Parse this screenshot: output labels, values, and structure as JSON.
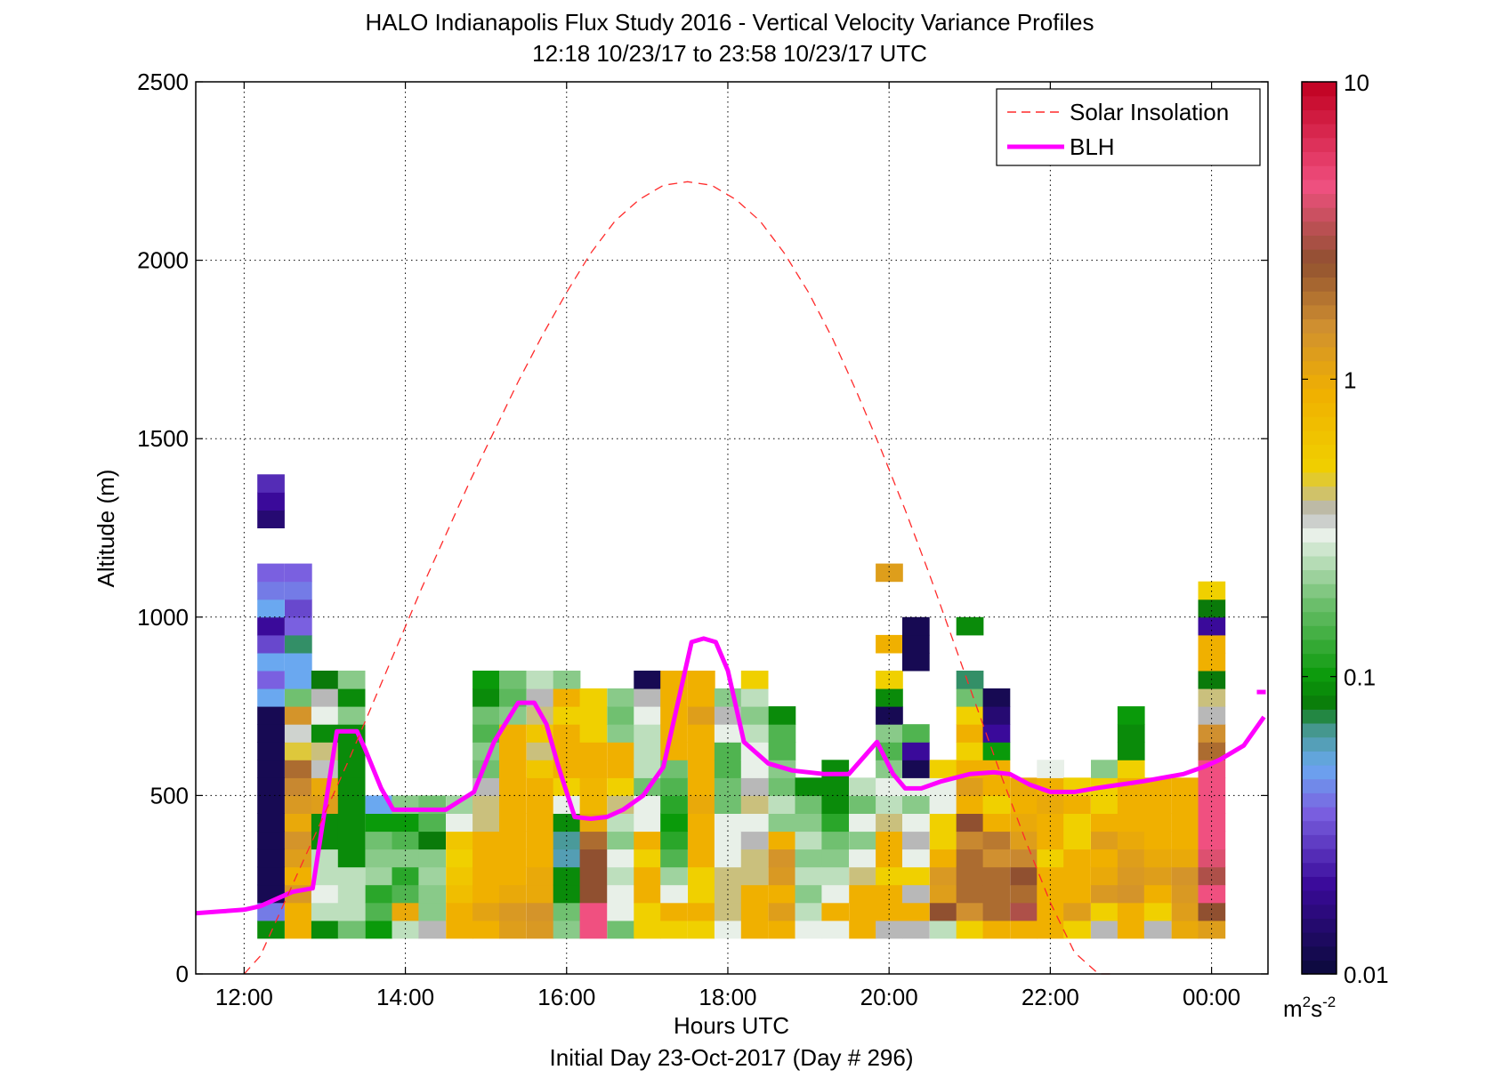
{
  "chart_data": {
    "type": "heatmap",
    "title": "HALO Indianapolis Flux Study 2016 - Vertical Velocity Variance Profiles",
    "subtitle": "12:18 10/23/17 to 23:58 10/23/17  UTC",
    "xlabel": "Hours UTC",
    "xlabel2": "Initial Day 23-Oct-2017 (Day # 296)",
    "ylabel": "Altitude (m)",
    "xlim": [
      11.4,
      24.7
    ],
    "ylim": [
      0,
      2500
    ],
    "x_ticks": [
      {
        "value": 12,
        "label": "12:00"
      },
      {
        "value": 14,
        "label": "14:00"
      },
      {
        "value": 16,
        "label": "16:00"
      },
      {
        "value": 18,
        "label": "18:00"
      },
      {
        "value": 20,
        "label": "20:00"
      },
      {
        "value": 22,
        "label": "22:00"
      },
      {
        "value": 24,
        "label": "00:00"
      }
    ],
    "y_ticks": [
      {
        "value": 0,
        "label": "0"
      },
      {
        "value": 500,
        "label": "500"
      },
      {
        "value": 1000,
        "label": "1000"
      },
      {
        "value": 1500,
        "label": "1500"
      },
      {
        "value": 2000,
        "label": "2000"
      },
      {
        "value": 2500,
        "label": "2500"
      }
    ],
    "grid": true,
    "colorbar": {
      "scale": "log",
      "range": [
        0.01,
        10
      ],
      "ticks": [
        {
          "value": 0.01,
          "label": "0.01"
        },
        {
          "value": 0.1,
          "label": "0.1"
        },
        {
          "value": 1,
          "label": "1"
        },
        {
          "value": 10,
          "label": "10"
        }
      ],
      "unit_base": "m",
      "unit_sup1": "2",
      "unit_mid": "s",
      "unit_sup2": "-2",
      "stops": [
        {
          "value": 0.01,
          "color": "#0a0a3a"
        },
        {
          "value": 0.02,
          "color": "#3a0a9a"
        },
        {
          "value": 0.035,
          "color": "#7a60e0"
        },
        {
          "value": 0.05,
          "color": "#6aa8f0"
        },
        {
          "value": 0.065,
          "color": "#4a9a9a"
        },
        {
          "value": 0.08,
          "color": "#0a7a0a"
        },
        {
          "value": 0.1,
          "color": "#0a9a0a"
        },
        {
          "value": 0.18,
          "color": "#70c070"
        },
        {
          "value": 0.3,
          "color": "#e8f0e8"
        },
        {
          "value": 0.36,
          "color": "#b8b8b8"
        },
        {
          "value": 0.5,
          "color": "#f0d000"
        },
        {
          "value": 0.9,
          "color": "#f0b000"
        },
        {
          "value": 1.5,
          "color": "#d09030"
        },
        {
          "value": 2.5,
          "color": "#905030"
        },
        {
          "value": 4.5,
          "color": "#f05080"
        },
        {
          "value": 10,
          "color": "#c00020"
        }
      ]
    },
    "legend": {
      "position": "top-right",
      "items": [
        {
          "label": "Solar Insolation",
          "style": "dashed",
          "color": "#ff2a2a"
        },
        {
          "label": "BLH",
          "style": "solid",
          "color": "#ff00ff"
        }
      ]
    },
    "grid_cells": {
      "x_start": 12.33,
      "x_step": 0.333,
      "y_start": 100,
      "y_step": 50
    },
    "profiles": [
      {
        "x": 12.33,
        "values": {
          "100": 0.09,
          "150": 0.04,
          "200": 0.012,
          "250": 0.012,
          "300": 0.012,
          "350": 0.012,
          "400": 0.012,
          "450": 0.012,
          "500": 0.012,
          "550": 0.012,
          "600": 0.012,
          "650": 0.012,
          "700": 0.012,
          "750": 0.05,
          "800": 0.035,
          "850": 0.05,
          "900": 0.03,
          "950": 0.02,
          "1000": 0.05,
          "1050": 0.04,
          "1100": 0.035,
          "1250": 0.015,
          "1300": 0.02,
          "1350": 0.025
        }
      },
      {
        "x": 12.67,
        "values": {
          "100": 0.9,
          "150": 0.9,
          "200": 1.3,
          "250": 0.9,
          "300": 1.2,
          "350": 1.4,
          "400": 1.0,
          "450": 1.3,
          "500": 1.6,
          "550": 2.0,
          "600": 0.45,
          "650": 0.33,
          "700": 1.4,
          "750": 0.18,
          "800": 0.05,
          "850": 0.05,
          "900": 0.07,
          "950": 0.035,
          "1000": 0.03,
          "1050": 0.04,
          "1100": 0.035
        }
      },
      {
        "x": 13.0,
        "values": {
          "100": 0.09,
          "150": 0.25,
          "200": 0.3,
          "250": 0.25,
          "300": 0.25,
          "350": 0.09,
          "400": 0.09,
          "450": 1.2,
          "500": 1.0,
          "550": 0.35,
          "600": 0.4,
          "650": 0.09,
          "700": 0.3,
          "750": 0.36,
          "800": 0.08
        }
      },
      {
        "x": 13.33,
        "values": {
          "100": 0.18,
          "150": 0.25,
          "200": 0.25,
          "250": 0.25,
          "300": 0.09,
          "350": 0.09,
          "400": 0.09,
          "450": 0.09,
          "500": 0.09,
          "550": 0.09,
          "600": 0.09,
          "650": 0.09,
          "700": 0.2,
          "750": 0.09,
          "800": 0.2
        }
      },
      {
        "x": 13.67,
        "values": {
          "100": 0.1,
          "150": 0.15,
          "200": 0.12,
          "250": 0.22,
          "300": 0.2,
          "350": 0.18,
          "400": 0.1,
          "450": 0.05
        }
      },
      {
        "x": 14.0,
        "values": {
          "100": 0.25,
          "150": 1.0,
          "200": 0.15,
          "250": 0.12,
          "300": 0.2,
          "350": 0.15,
          "400": 0.1,
          "450": 0.2
        }
      },
      {
        "x": 14.33,
        "values": {
          "100": 0.36,
          "150": 0.2,
          "200": 0.2,
          "250": 0.22,
          "300": 0.2,
          "350": 0.08,
          "400": 0.15,
          "450": 0.18
        }
      },
      {
        "x": 14.67,
        "values": {
          "100": 0.9,
          "150": 0.9,
          "200": 0.7,
          "250": 0.6,
          "300": 0.5,
          "350": 0.6,
          "400": 0.3,
          "450": 0.22
        }
      },
      {
        "x": 15.0,
        "values": {
          "100": 0.9,
          "150": 1.1,
          "200": 0.9,
          "250": 0.9,
          "300": 0.9,
          "350": 0.9,
          "400": 0.4,
          "450": 0.4,
          "500": 0.36,
          "550": 0.18,
          "600": 0.2,
          "650": 0.15,
          "700": 0.18,
          "750": 0.09,
          "800": 0.1
        }
      },
      {
        "x": 15.33,
        "values": {
          "100": 1.2,
          "150": 1.3,
          "200": 1.0,
          "250": 0.9,
          "300": 0.9,
          "350": 0.9,
          "400": 0.9,
          "450": 0.9,
          "500": 0.9,
          "550": 0.9,
          "600": 0.9,
          "650": 0.9,
          "700": 0.2,
          "750": 0.16,
          "800": 0.18
        }
      },
      {
        "x": 15.67,
        "values": {
          "100": 1.3,
          "150": 1.4,
          "200": 1.0,
          "250": 1.0,
          "300": 0.9,
          "350": 0.9,
          "400": 0.9,
          "450": 0.9,
          "500": 0.9,
          "550": 0.6,
          "600": 0.4,
          "650": 0.6,
          "700": 0.4,
          "750": 0.36,
          "800": 0.25
        }
      },
      {
        "x": 16.0,
        "values": {
          "100": 0.2,
          "150": 0.18,
          "200": 0.09,
          "250": 0.09,
          "300": 0.06,
          "350": 0.065,
          "400": 0.09,
          "450": 0.3,
          "500": 0.5,
          "550": 0.9,
          "600": 0.9,
          "650": 0.9,
          "700": 0.5,
          "750": 0.9,
          "800": 0.2
        }
      },
      {
        "x": 16.33,
        "values": {
          "100": 4.5,
          "150": 4.5,
          "200": 2.5,
          "250": 2.5,
          "300": 2.5,
          "350": 2.0,
          "400": 1.0,
          "450": 0.8,
          "500": 0.8,
          "550": 0.9,
          "600": 0.9,
          "650": 0.5,
          "700": 0.5,
          "750": 0.5
        }
      },
      {
        "x": 16.67,
        "values": {
          "100": 0.18,
          "150": 0.3,
          "200": 0.3,
          "250": 0.25,
          "300": 0.3,
          "350": 0.2,
          "400": 0.25,
          "450": 0.4,
          "500": 0.5,
          "550": 0.9,
          "600": 0.9,
          "650": 0.2,
          "700": 0.18,
          "750": 0.2
        }
      },
      {
        "x": 17.0,
        "values": {
          "100": 0.5,
          "150": 0.5,
          "200": 0.9,
          "250": 0.9,
          "300": 0.5,
          "350": 0.9,
          "400": 0.3,
          "450": 0.3,
          "500": 0.18,
          "550": 0.25,
          "600": 0.25,
          "650": 0.25,
          "700": 0.3,
          "750": 0.36,
          "800": 0.012
        }
      },
      {
        "x": 17.33,
        "values": {
          "100": 0.5,
          "150": 0.9,
          "200": 0.3,
          "250": 0.22,
          "300": 0.15,
          "350": 0.12,
          "400": 0.1,
          "450": 0.12,
          "500": 0.15,
          "550": 0.18,
          "600": 0.9,
          "650": 0.9,
          "700": 0.9,
          "750": 0.9,
          "800": 0.9
        }
      },
      {
        "x": 17.67,
        "values": {
          "100": 0.5,
          "150": 0.9,
          "200": 0.5,
          "250": 0.5,
          "300": 0.9,
          "350": 0.9,
          "400": 0.9,
          "450": 1.0,
          "500": 0.9,
          "550": 0.9,
          "600": 0.9,
          "650": 0.9,
          "700": 1.2,
          "750": 0.9,
          "800": 0.9
        }
      },
      {
        "x": 18.0,
        "values": {
          "100": 0.3,
          "150": 0.4,
          "200": 0.4,
          "250": 0.4,
          "300": 0.3,
          "350": 0.3,
          "400": 0.3,
          "450": 0.18,
          "500": 0.18,
          "550": 0.15,
          "600": 0.15,
          "650": 0.3,
          "700": 0.36,
          "750": 0.2
        }
      },
      {
        "x": 18.33,
        "values": {
          "100": 0.9,
          "150": 0.9,
          "200": 0.9,
          "250": 0.4,
          "300": 0.4,
          "350": 0.36,
          "400": 0.3,
          "450": 0.4,
          "500": 0.36,
          "550": 0.3,
          "600": 0.3,
          "650": 0.25,
          "700": 0.2,
          "750": 0.25,
          "800": 0.5
        }
      },
      {
        "x": 18.67,
        "values": {
          "100": 0.9,
          "150": 1.2,
          "200": 0.9,
          "250": 1.3,
          "300": 1.4,
          "350": 0.9,
          "400": 0.2,
          "450": 0.25,
          "500": 0.18,
          "550": 0.2,
          "600": 0.15,
          "650": 0.15,
          "700": 0.09
        }
      },
      {
        "x": 19.0,
        "values": {
          "100": 0.3,
          "150": 0.25,
          "200": 0.2,
          "250": 0.25,
          "300": 0.2,
          "350": 0.25,
          "400": 0.2,
          "450": 0.18,
          "500": 0.09
        }
      },
      {
        "x": 19.33,
        "values": {
          "100": 0.3,
          "150": 0.9,
          "200": 0.3,
          "250": 0.25,
          "300": 0.2,
          "350": 0.18,
          "400": 0.12,
          "450": 0.09,
          "500": 0.09,
          "550": 0.09
        }
      },
      {
        "x": 19.67,
        "values": {
          "100": 0.9,
          "150": 0.9,
          "200": 0.9,
          "250": 0.4,
          "300": 0.3,
          "350": 0.2,
          "400": 0.3,
          "450": 0.18,
          "500": 0.25
        }
      },
      {
        "x": 20.0,
        "values": {
          "100": 0.36,
          "150": 0.9,
          "200": 0.9,
          "250": 0.5,
          "300": 0.9,
          "350": 0.9,
          "400": 0.4,
          "450": 0.25,
          "500": 0.3,
          "550": 0.2,
          "600": 0.15,
          "650": 0.2,
          "700": 0.012,
          "750": 0.09,
          "800": 0.5,
          "900": 0.9,
          "1100": 1.2
        }
      },
      {
        "x": 20.33,
        "values": {
          "100": 0.36,
          "150": 0.9,
          "200": 0.36,
          "250": 0.5,
          "300": 0.3,
          "350": 0.36,
          "400": 0.3,
          "450": 0.2,
          "500": 0.3,
          "550": 0.012,
          "600": 0.02,
          "650": 0.15,
          "850": 0.012,
          "900": 0.012,
          "950": 0.012
        }
      },
      {
        "x": 20.67,
        "values": {
          "100": 0.25,
          "150": 2.5,
          "200": 1.2,
          "250": 1.3,
          "300": 0.9,
          "350": 0.5,
          "400": 0.5,
          "450": 0.3,
          "500": 0.3,
          "550": 0.5
        }
      },
      {
        "x": 21.0,
        "values": {
          "100": 0.5,
          "150": 1.5,
          "200": 2.0,
          "250": 2.0,
          "300": 2.0,
          "350": 1.6,
          "400": 2.5,
          "450": 0.9,
          "500": 1.2,
          "550": 0.9,
          "600": 0.5,
          "650": 0.9,
          "700": 0.5,
          "750": 0.18,
          "800": 0.07,
          "950": 0.09
        }
      },
      {
        "x": 21.33,
        "values": {
          "100": 0.9,
          "150": 2.0,
          "200": 2.0,
          "250": 2.0,
          "300": 1.5,
          "350": 1.8,
          "400": 0.9,
          "450": 0.5,
          "500": 0.9,
          "550": 0.9,
          "600": 0.1,
          "650": 0.02,
          "700": 0.015,
          "750": 0.012
        }
      },
      {
        "x": 21.67,
        "values": {
          "100": 0.9,
          "150": 3.0,
          "200": 2.0,
          "250": 2.5,
          "300": 1.6,
          "350": 1.2,
          "400": 1.0,
          "450": 0.9,
          "500": 1.0
        }
      },
      {
        "x": 22.0,
        "values": {
          "100": 0.9,
          "150": 0.9,
          "200": 0.9,
          "250": 0.9,
          "300": 0.5,
          "350": 0.9,
          "400": 0.9,
          "450": 1.0,
          "500": 0.9,
          "550": 0.3
        }
      },
      {
        "x": 22.33,
        "values": {
          "100": 0.5,
          "150": 1.2,
          "200": 0.9,
          "250": 0.9,
          "300": 0.9,
          "350": 0.5,
          "400": 0.5,
          "450": 0.9,
          "500": 0.5
        }
      },
      {
        "x": 22.67,
        "values": {
          "100": 0.36,
          "150": 0.5,
          "200": 1.3,
          "250": 1.0,
          "300": 0.9,
          "350": 1.2,
          "400": 0.9,
          "450": 0.5,
          "500": 0.5,
          "550": 0.2
        }
      },
      {
        "x": 23.0,
        "values": {
          "100": 0.9,
          "150": 0.9,
          "200": 1.4,
          "250": 1.3,
          "300": 1.2,
          "350": 1.0,
          "400": 0.9,
          "450": 0.9,
          "500": 0.9,
          "550": 0.5,
          "600": 0.09,
          "650": 0.09,
          "700": 0.1
        }
      },
      {
        "x": 23.33,
        "values": {
          "100": 0.36,
          "150": 0.5,
          "200": 0.9,
          "250": 1.2,
          "300": 1.0,
          "350": 0.9,
          "400": 0.9,
          "450": 0.9,
          "500": 0.9
        }
      },
      {
        "x": 23.67,
        "values": {
          "100": 1.0,
          "150": 1.2,
          "200": 1.3,
          "250": 1.4,
          "300": 1.0,
          "350": 0.9,
          "400": 0.9,
          "450": 0.9,
          "500": 0.9
        }
      },
      {
        "x": 24.0,
        "values": {
          "100": 1.2,
          "150": 2.5,
          "200": 4.5,
          "250": 3.0,
          "300": 4.0,
          "350": 4.5,
          "400": 4.5,
          "450": 4.5,
          "500": 4.5,
          "550": 4.5,
          "600": 2.0,
          "650": 1.5,
          "700": 0.36,
          "750": 0.4,
          "800": 0.08,
          "850": 0.9,
          "900": 0.9,
          "950": 0.02,
          "1000": 0.08,
          "1050": 0.5
        }
      }
    ],
    "series": [
      {
        "name": "BLH",
        "x": [
          11.4,
          11.7,
          12.0,
          12.2,
          12.4,
          12.6,
          12.85,
          13.15,
          13.4,
          13.5,
          13.7,
          13.85,
          14.2,
          14.5,
          14.85,
          15.1,
          15.4,
          15.6,
          15.75,
          15.9,
          16.1,
          16.3,
          16.5,
          16.7,
          16.95,
          17.2,
          17.55,
          17.7,
          17.85,
          18.0,
          18.2,
          18.5,
          18.8,
          19.2,
          19.5,
          19.85,
          20.05,
          20.2,
          20.4,
          20.65,
          21.0,
          21.3,
          21.5,
          21.75,
          22.0,
          22.3,
          22.55,
          22.85,
          23.15,
          23.4,
          23.65,
          23.9,
          24.1,
          24.4,
          24.65
        ],
        "y": [
          170,
          175,
          180,
          190,
          210,
          230,
          240,
          680,
          680,
          630,
          520,
          460,
          460,
          460,
          510,
          650,
          760,
          760,
          700,
          580,
          440,
          435,
          440,
          460,
          500,
          580,
          930,
          940,
          930,
          850,
          650,
          590,
          570,
          560,
          560,
          650,
          560,
          520,
          520,
          540,
          560,
          565,
          560,
          530,
          510,
          510,
          520,
          530,
          540,
          550,
          560,
          580,
          600,
          640,
          720
        ]
      },
      {
        "name": "Solar Insolation",
        "x": [
          12.0,
          12.2,
          12.4,
          12.6,
          12.8,
          13.0,
          13.3,
          13.6,
          13.9,
          14.2,
          14.5,
          14.8,
          15.1,
          15.4,
          15.7,
          16.0,
          16.3,
          16.6,
          16.9,
          17.2,
          17.5,
          17.8,
          18.1,
          18.4,
          18.7,
          19.0,
          19.3,
          19.6,
          19.9,
          20.2,
          20.5,
          20.8,
          21.1,
          21.4,
          21.7,
          22.0,
          22.3,
          22.6,
          22.8
        ],
        "y": [
          0,
          50,
          150,
          250,
          350,
          450,
          600,
          760,
          920,
          1080,
          1230,
          1380,
          1520,
          1660,
          1790,
          1910,
          2020,
          2110,
          2170,
          2210,
          2220,
          2210,
          2170,
          2110,
          2020,
          1910,
          1780,
          1630,
          1470,
          1300,
          1120,
          930,
          740,
          550,
          370,
          200,
          60,
          0,
          0
        ]
      }
    ],
    "annotations": [
      {
        "x": 24.65,
        "y": 790,
        "marker": "short-magenta-segment"
      }
    ]
  }
}
